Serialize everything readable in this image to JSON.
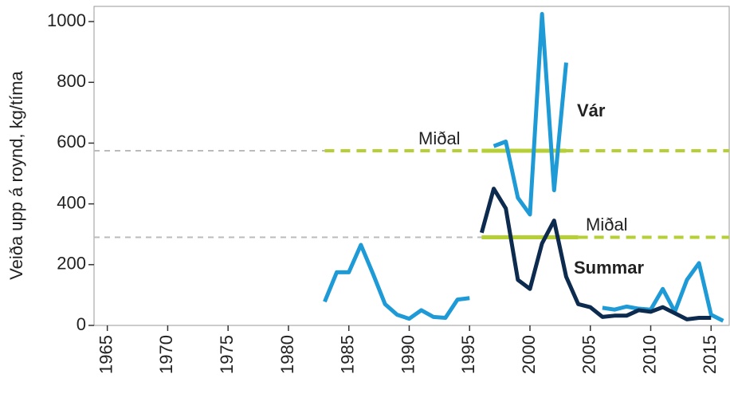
{
  "chart_data": {
    "type": "line",
    "y_label": "Veiða upp á roynd, kg/tíma",
    "x": [
      1983,
      1984,
      1985,
      1986,
      1987,
      1988,
      1989,
      1990,
      1991,
      1992,
      1993,
      1994,
      1995,
      1996,
      1997,
      1998,
      1999,
      2000,
      2001,
      2002,
      2003,
      2004,
      2005,
      2006,
      2007,
      2008,
      2009,
      2010,
      2011,
      2012,
      2013,
      2014,
      2015,
      2016
    ],
    "series": [
      {
        "name": "Vár",
        "color": "#1e9ad6",
        "values": [
          78,
          175,
          175,
          265,
          170,
          70,
          35,
          22,
          50,
          28,
          25,
          85,
          90,
          null,
          590,
          605,
          420,
          365,
          1025,
          445,
          865,
          null,
          null,
          58,
          52,
          62,
          55,
          52,
          120,
          45,
          150,
          205,
          35,
          15
        ]
      },
      {
        "name": "Summar",
        "color": "#0d2b4f",
        "values": [
          null,
          null,
          null,
          null,
          null,
          null,
          null,
          null,
          null,
          null,
          null,
          null,
          null,
          305,
          450,
          385,
          150,
          120,
          270,
          345,
          160,
          70,
          60,
          28,
          32,
          32,
          50,
          45,
          60,
          40,
          20,
          25,
          25,
          null
        ]
      }
    ],
    "mean_lines": [
      {
        "label": "Miðal",
        "value": 575,
        "color": "#b5cf35",
        "period": [
          1996,
          2003
        ],
        "dashed_from": 1983
      },
      {
        "label": "Miðal",
        "value": 290,
        "color": "#b5cf35",
        "period": [
          1996,
          2004
        ],
        "dashed_from": 2004
      }
    ],
    "xlim": [
      1963.9,
      2016.5
    ],
    "ylim": [
      0,
      1050
    ],
    "xticks": [
      1965,
      1970,
      1975,
      1980,
      1985,
      1990,
      1995,
      2000,
      2005,
      2010,
      2015
    ],
    "yticks": [
      0,
      200,
      400,
      600,
      800,
      1000
    ]
  }
}
